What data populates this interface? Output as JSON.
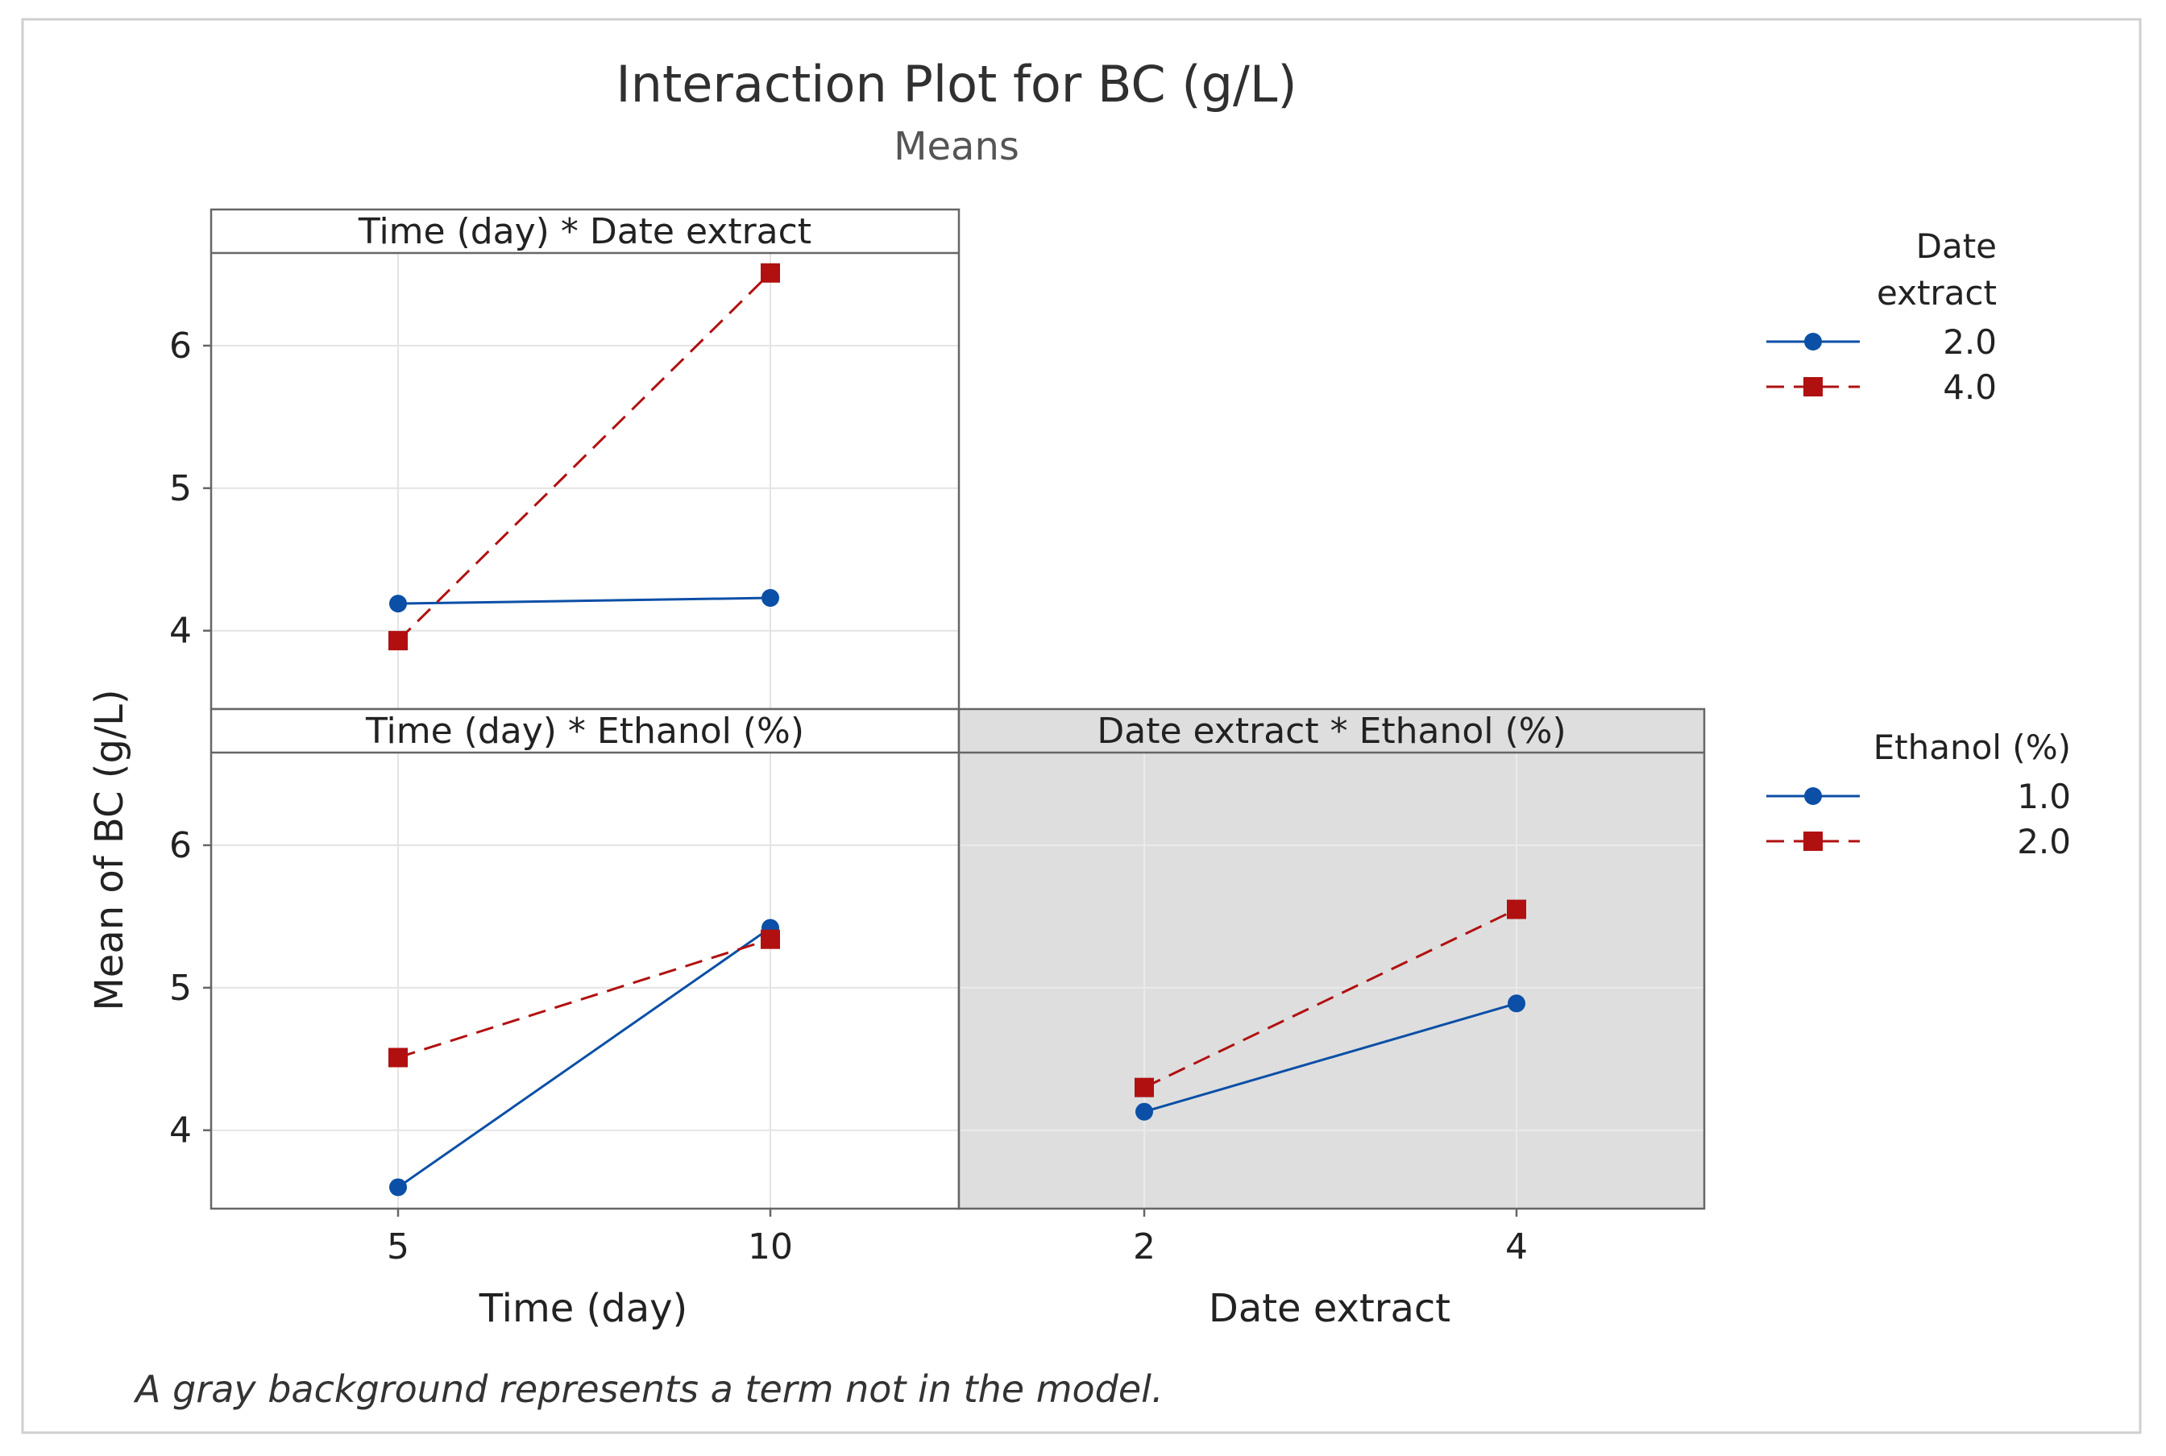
{
  "chart_data": {
    "type": "line",
    "title": "Interaction Plot for BC (g/L)",
    "subtitle": "Means",
    "ylabel": "Mean of BC (g/L)",
    "ylim": [
      3.45,
      6.65
    ],
    "yticks": [
      4,
      5,
      6
    ],
    "footnote": "A gray background represents a term not in the model.",
    "colors": {
      "level1": "#0b4fa6",
      "level2": "#b11010",
      "gray_panel": "#dedede",
      "grid": "#e4e4e4",
      "frame": "#666666"
    },
    "columns": [
      {
        "name": "Time (day)",
        "xlabel": "Time (day)",
        "ticks": [
          "5",
          "10"
        ]
      },
      {
        "name": "Date extract",
        "xlabel": "Date extract",
        "ticks": [
          "2",
          "4"
        ]
      }
    ],
    "legends": [
      {
        "title_lines": [
          "Date",
          "extract"
        ],
        "entries": [
          {
            "label": "2.0"
          },
          {
            "label": "4.0"
          }
        ]
      },
      {
        "title_lines": [
          "Ethanol (%)"
        ],
        "entries": [
          {
            "label": "1.0"
          },
          {
            "label": "2.0"
          }
        ]
      }
    ],
    "panels": [
      {
        "title": "Time (day) * Date extract",
        "row": 0,
        "col": 0,
        "in_model": true,
        "x": [
          "5",
          "10"
        ],
        "series": [
          {
            "name": "2.0",
            "values": [
              4.19,
              4.23
            ]
          },
          {
            "name": "4.0",
            "values": [
              3.93,
              6.51
            ]
          }
        ]
      },
      {
        "title": "Time (day) * Ethanol (%)",
        "row": 1,
        "col": 0,
        "in_model": true,
        "x": [
          "5",
          "10"
        ],
        "series": [
          {
            "name": "1.0",
            "values": [
              3.6,
              5.42
            ]
          },
          {
            "name": "2.0",
            "values": [
              4.51,
              5.34
            ]
          }
        ]
      },
      {
        "title": "Date extract * Ethanol (%)",
        "row": 1,
        "col": 1,
        "in_model": false,
        "x": [
          "2",
          "4"
        ],
        "series": [
          {
            "name": "1.0",
            "values": [
              4.13,
              4.89
            ]
          },
          {
            "name": "2.0",
            "values": [
              4.3,
              5.55
            ]
          }
        ]
      }
    ]
  }
}
